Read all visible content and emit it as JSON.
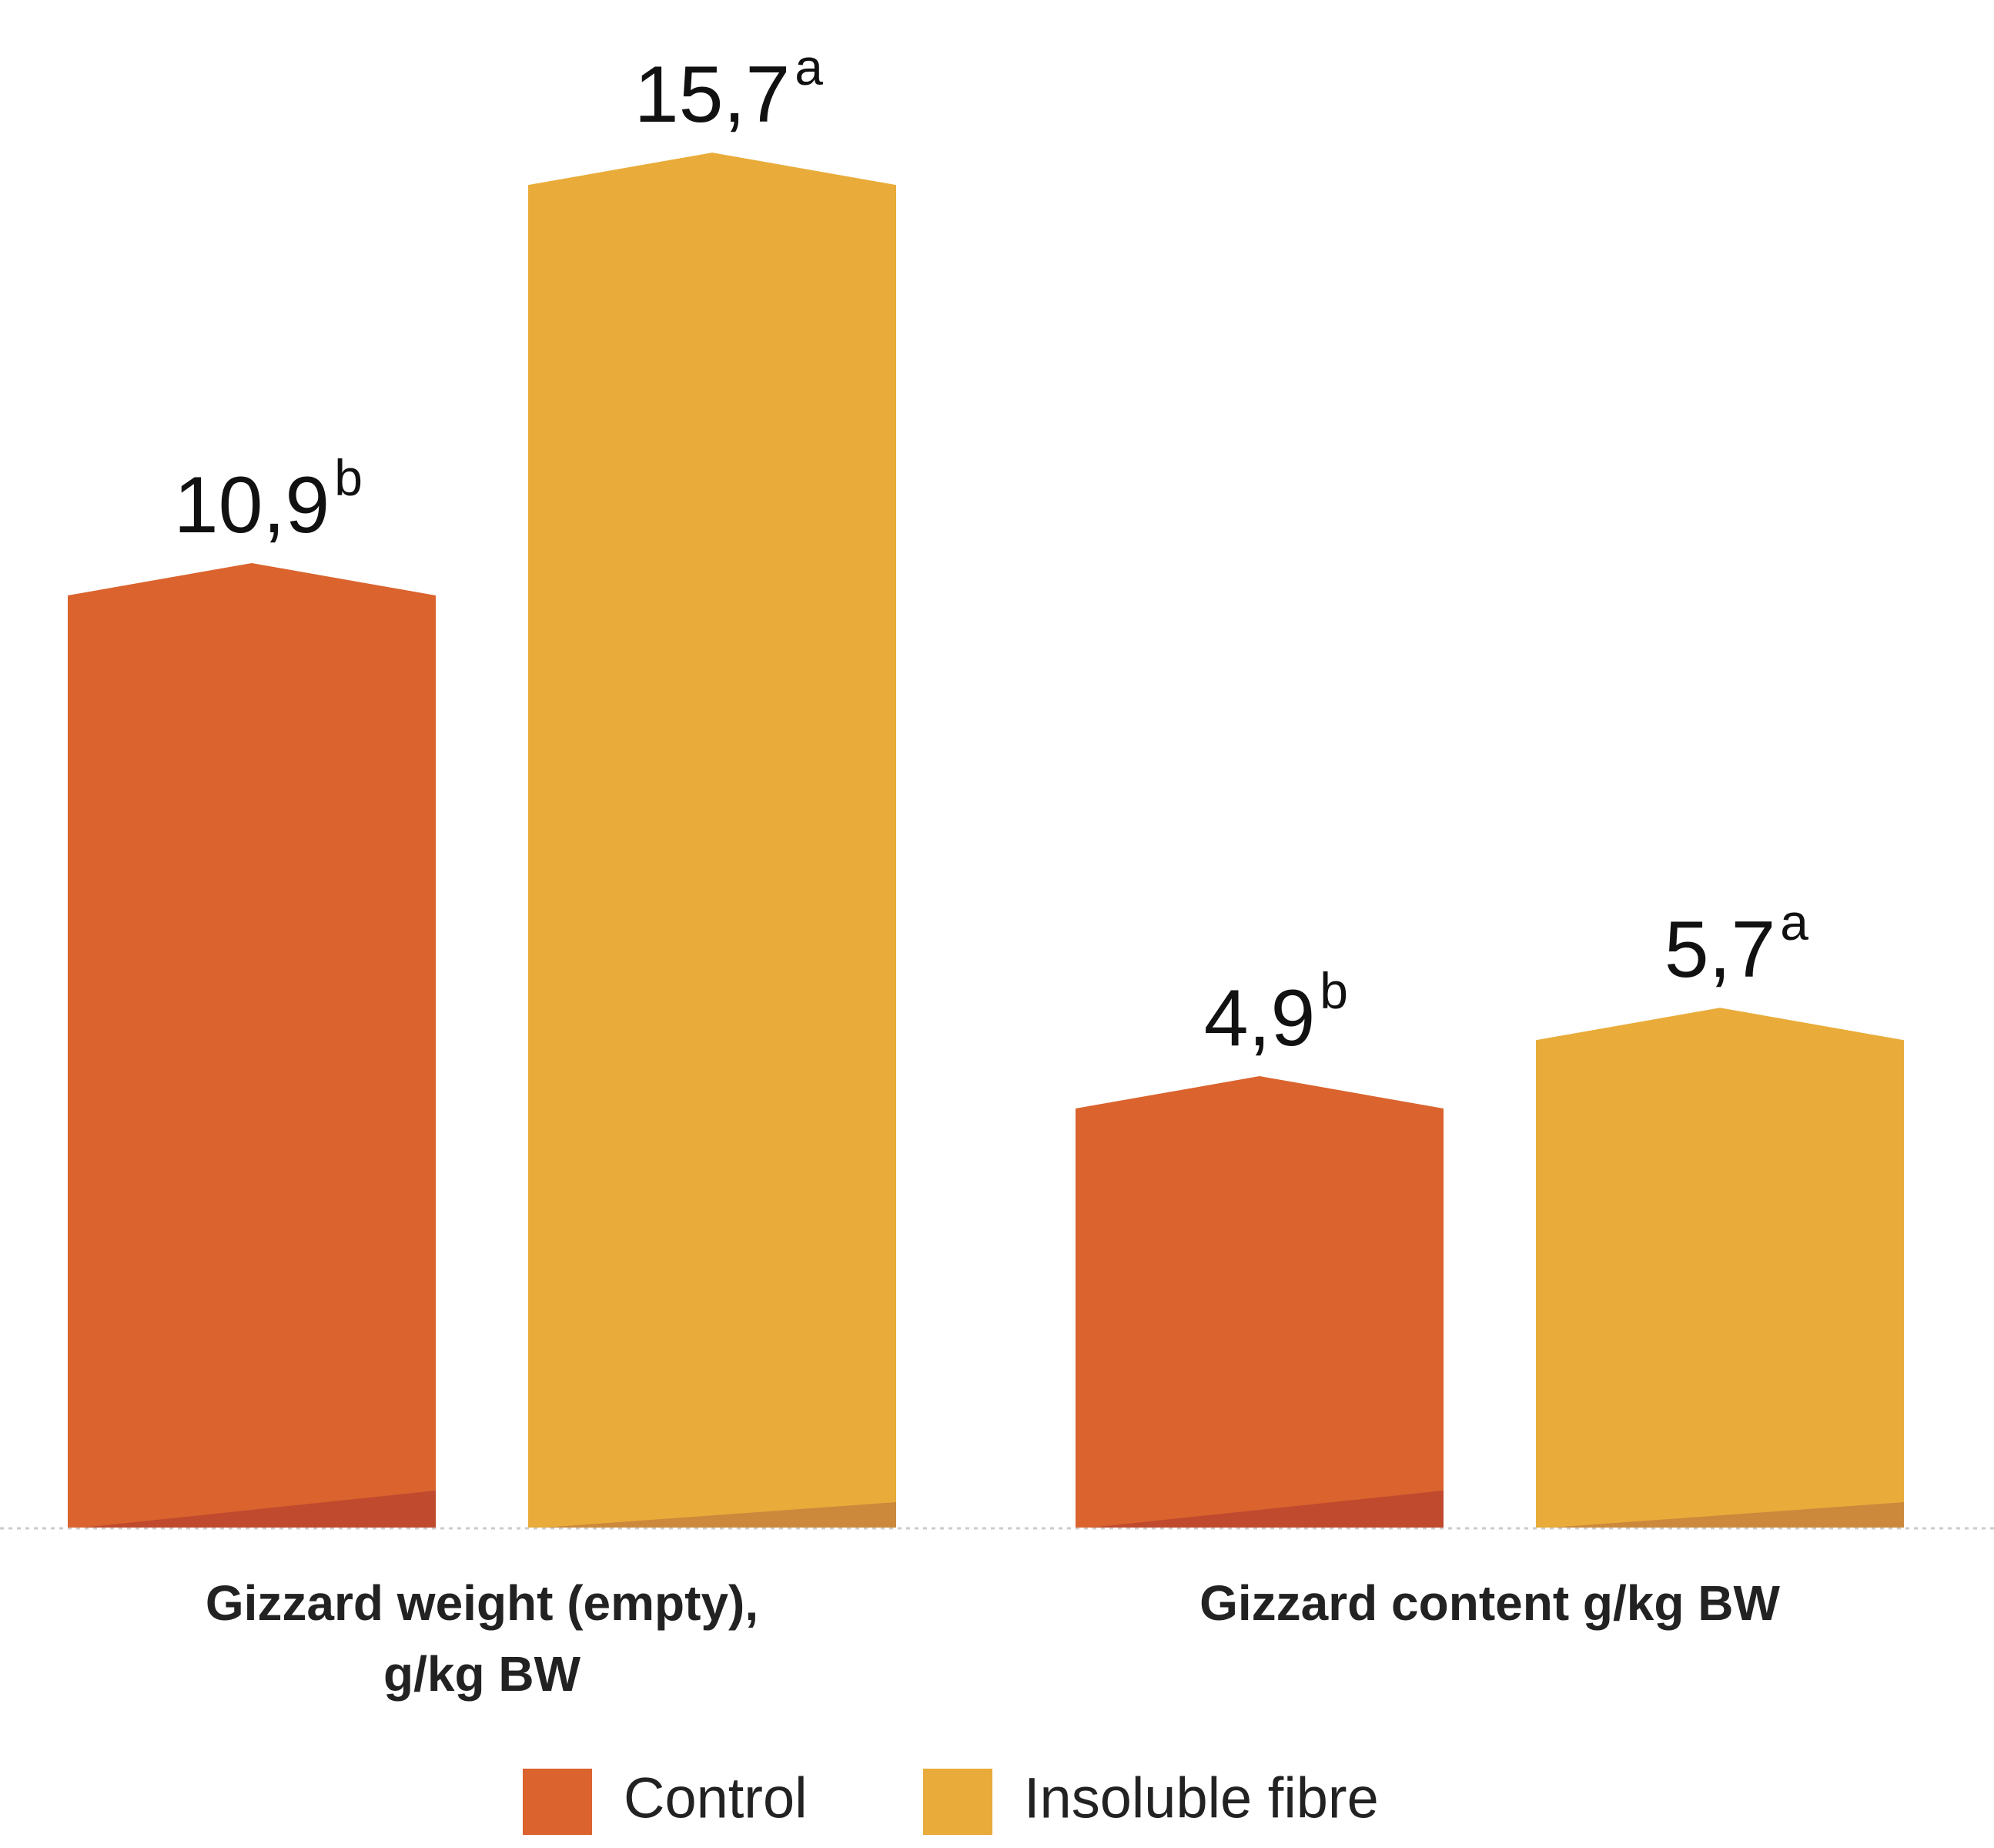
{
  "chart_data": {
    "type": "bar",
    "categories": [
      "Gizzard weight (empty), g/kg BW",
      "Gizzard content  g/kg BW"
    ],
    "series": [
      {
        "name": "Control",
        "color": "#da632e",
        "values": [
          10.9,
          4.9
        ],
        "value_labels": [
          "10,9",
          "4,9"
        ],
        "superscripts": [
          "b",
          "b"
        ]
      },
      {
        "name": "Insoluble fibre",
        "color": "#e9ac3a",
        "values": [
          15.7,
          5.7
        ],
        "value_labels": [
          "15,7",
          "5,7"
        ],
        "superscripts": [
          "a",
          "a"
        ]
      }
    ],
    "ylim": [
      0,
      17.8
    ],
    "legend": "bottom"
  }
}
